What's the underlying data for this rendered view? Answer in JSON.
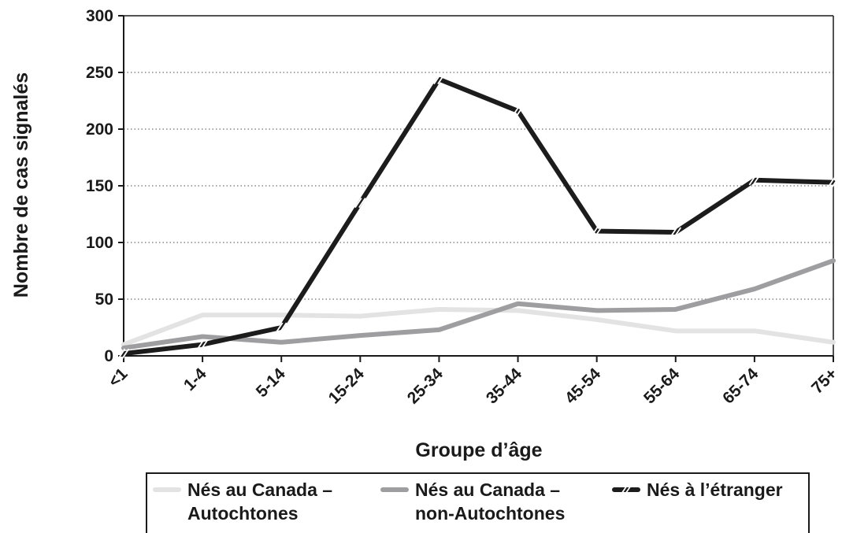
{
  "chart_data": {
    "type": "line",
    "categories": [
      "<1",
      "1-4",
      "5-14",
      "15-24",
      "25-34",
      "35-44",
      "45-54",
      "55-64",
      "65-74",
      "75+"
    ],
    "xlabel": "Groupe d’âge",
    "ylabel": "Nombre de cas signalés",
    "ylim": [
      0,
      300
    ],
    "yticks": [
      0,
      50,
      100,
      150,
      200,
      250,
      300
    ],
    "grid": "horizontal dotted",
    "legend_position": "bottom",
    "series": [
      {
        "name": "Nés au Canada – Autochtones",
        "name_lines": [
          "Nés au Canada –",
          "Autochtones"
        ],
        "color": "#e3e3e3",
        "marker": "none",
        "values": [
          10,
          36,
          36,
          35,
          41,
          40,
          32,
          22,
          22,
          12
        ]
      },
      {
        "name": "Nés au Canada – non-Autochtones",
        "name_lines": [
          "Nés au Canada –",
          "non-Autochtones"
        ],
        "color": "#9e9ea0",
        "marker": "none",
        "values": [
          7,
          17,
          12,
          18,
          23,
          46,
          40,
          41,
          59,
          84
        ]
      },
      {
        "name": "Nés à l’étranger",
        "name_lines": [
          "Nés à l’étranger"
        ],
        "color": "#1c1c1c",
        "marker": "hash",
        "values": [
          2,
          10,
          25,
          135,
          244,
          216,
          110,
          109,
          155,
          153
        ]
      }
    ]
  }
}
